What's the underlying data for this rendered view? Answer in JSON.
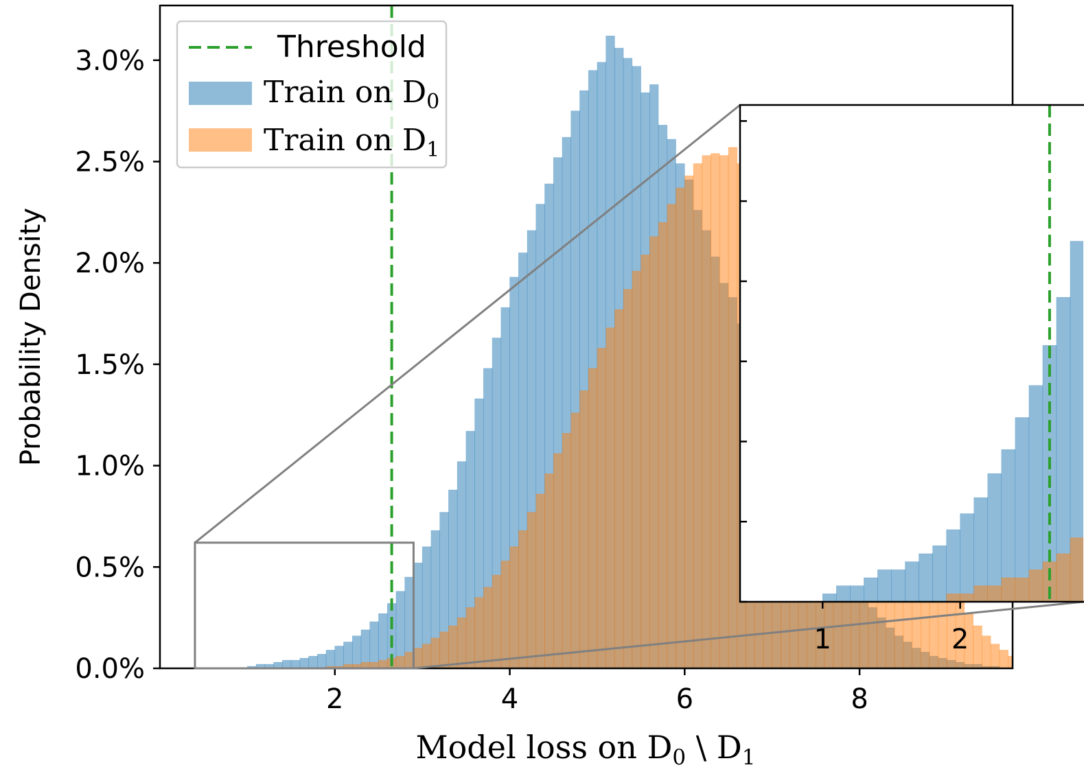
{
  "chart_data": {
    "type": "bar",
    "xlabel": "Model loss on D",
    "xlabel_parts": {
      "sub0": "0",
      "sep": " \\ D",
      "sub1": "1"
    },
    "ylabel": "Probability Density",
    "xlim": [
      0.0,
      9.75
    ],
    "ylim": [
      0.0,
      0.0327
    ],
    "x_ticks": [
      2,
      4,
      6,
      8
    ],
    "y_ticks": [
      0.0,
      0.005,
      0.01,
      0.015,
      0.02,
      0.025,
      0.03
    ],
    "y_tick_labels": [
      "0.0%",
      "0.5%",
      "1.0%",
      "1.5%",
      "2.0%",
      "2.5%",
      "3.0%"
    ],
    "threshold": 2.65,
    "bin_width": 0.1,
    "legend": {
      "placement": "upper-left",
      "threshold_label": "Threshold",
      "train_label": "Train on D",
      "d0_sub": "0",
      "d1_sub": "1"
    },
    "series": [
      {
        "name": "Train on D0",
        "color": "#1f77b4",
        "start": 1.0,
        "values": [
          0.0001,
          0.0002,
          0.0002,
          0.0003,
          0.0004,
          0.0004,
          0.0005,
          0.0006,
          0.0007,
          0.0009,
          0.0011,
          0.0013,
          0.0016,
          0.0019,
          0.0023,
          0.0027,
          0.0032,
          0.0038,
          0.0045,
          0.0052,
          0.006,
          0.0068,
          0.0077,
          0.0088,
          0.0102,
          0.0117,
          0.0133,
          0.0148,
          0.0163,
          0.0178,
          0.0193,
          0.0205,
          0.0216,
          0.0229,
          0.0239,
          0.0252,
          0.0262,
          0.0275,
          0.0285,
          0.0295,
          0.0299,
          0.0312,
          0.0306,
          0.0301,
          0.0297,
          0.0284,
          0.0288,
          0.0268,
          0.0261,
          0.0249,
          0.0241,
          0.0226,
          0.0216,
          0.0203,
          0.019,
          0.0183,
          0.017,
          0.0158,
          0.0143,
          0.0131,
          0.0123,
          0.0113,
          0.0101,
          0.0092,
          0.0081,
          0.0072,
          0.0064,
          0.0055,
          0.0048,
          0.0041,
          0.0035,
          0.003,
          0.0025,
          0.002,
          0.0016,
          0.0013,
          0.001,
          0.0008,
          0.0006,
          0.0005,
          0.0004,
          0.0003,
          0.0002,
          0.0002,
          0.0001,
          0.0001
        ]
      },
      {
        "name": "Train on D1",
        "color": "#ff7f0e",
        "start": 1.9,
        "values": [
          0.0001,
          0.0001,
          0.0002,
          0.0002,
          0.0003,
          0.0003,
          0.0004,
          0.0005,
          0.0006,
          0.0008,
          0.001,
          0.0012,
          0.0015,
          0.0018,
          0.0021,
          0.0025,
          0.003,
          0.0035,
          0.004,
          0.0046,
          0.0053,
          0.006,
          0.0068,
          0.0077,
          0.0086,
          0.0096,
          0.0106,
          0.0116,
          0.0126,
          0.0137,
          0.0148,
          0.0158,
          0.0168,
          0.0177,
          0.0187,
          0.0196,
          0.0204,
          0.0213,
          0.022,
          0.0229,
          0.0237,
          0.0243,
          0.0249,
          0.0253,
          0.0254,
          0.0253,
          0.0257,
          0.0249,
          0.0247,
          0.0247,
          0.0243,
          0.0238,
          0.0232,
          0.0227,
          0.0222,
          0.0215,
          0.0208,
          0.0199,
          0.019,
          0.018,
          0.0168,
          0.0155,
          0.0142,
          0.0128,
          0.0115,
          0.0102,
          0.009,
          0.0079,
          0.0068,
          0.0058,
          0.0049,
          0.0041,
          0.0034,
          0.0027,
          0.0021,
          0.0016,
          0.0012,
          0.0009,
          0.0006,
          0.0004,
          0.0002,
          0.0001
        ]
      }
    ],
    "inset": {
      "xlim": [
        0.4,
        2.9
      ],
      "ylim": [
        0.0,
        0.0062
      ],
      "x_ticks": [
        1,
        2
      ],
      "y_tick_count": 6
    }
  }
}
